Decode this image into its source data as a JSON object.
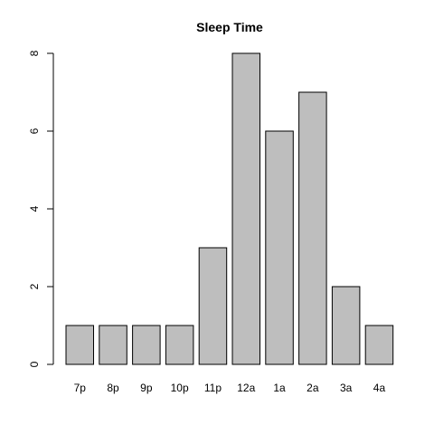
{
  "chart_data": {
    "type": "bar",
    "title": "Sleep Time",
    "xlabel": "",
    "ylabel": "",
    "categories": [
      "7p",
      "8p",
      "9p",
      "10p",
      "11p",
      "12a",
      "1a",
      "2a",
      "3a",
      "4a"
    ],
    "values": [
      1,
      1,
      1,
      1,
      3,
      8,
      6,
      7,
      2,
      1
    ],
    "ylim": [
      0,
      8
    ],
    "yticks": [
      0,
      2,
      4,
      6,
      8
    ],
    "grid": false,
    "bar_color": "#bebebe",
    "border_color": "#000000"
  }
}
